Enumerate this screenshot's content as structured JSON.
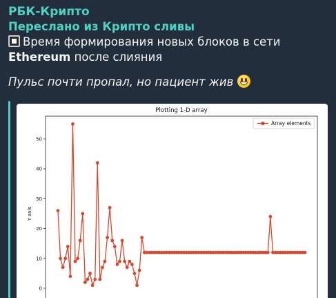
{
  "message": {
    "channel_name": "РБК-Крипто",
    "forwarded_from": "Переслано из Крипто сливы",
    "text_before_bold": "Время формирования новых блоков в сети ",
    "text_bold": "Ethereum",
    "text_after_bold": " после слияния",
    "italic_text": "Пульс почти пропал, но пациент жив",
    "square_icon": "white-square-emoji",
    "smile_icon": "smiling-face-emoji",
    "accent_color": "#4fd1c1"
  },
  "chart_data": {
    "type": "line",
    "title": "Plotting 1-D array",
    "xlabel": "",
    "ylabel": "Y axis",
    "ylim": [
      -1,
      58
    ],
    "xlim": [
      -4,
      104
    ],
    "yticks": [
      0,
      10,
      20,
      30,
      40,
      50
    ],
    "legend": "top-right",
    "series": [
      {
        "name": "Array elements",
        "color": "#d9462b",
        "marker": "circle",
        "values": [
          26,
          10,
          7,
          10,
          14,
          4,
          55,
          9,
          10,
          16,
          25,
          2,
          3,
          5,
          1,
          3,
          42,
          3,
          7,
          9,
          17,
          27,
          16,
          14,
          8,
          9,
          16,
          9,
          7,
          9,
          8,
          5,
          1,
          6,
          17,
          12,
          12,
          12,
          12,
          12,
          12,
          12,
          12,
          12,
          12,
          12,
          12,
          12,
          12,
          12,
          12,
          12,
          12,
          12,
          12,
          12,
          12,
          12,
          12,
          12,
          12,
          12,
          12,
          12,
          12,
          12,
          12,
          12,
          12,
          12,
          12,
          12,
          12,
          12,
          12,
          12,
          12,
          12,
          12,
          12,
          12,
          12,
          12,
          12,
          12,
          12,
          24,
          12,
          12,
          12,
          12,
          12,
          12,
          12,
          12,
          12,
          12,
          12,
          12,
          12,
          12
        ]
      }
    ]
  }
}
